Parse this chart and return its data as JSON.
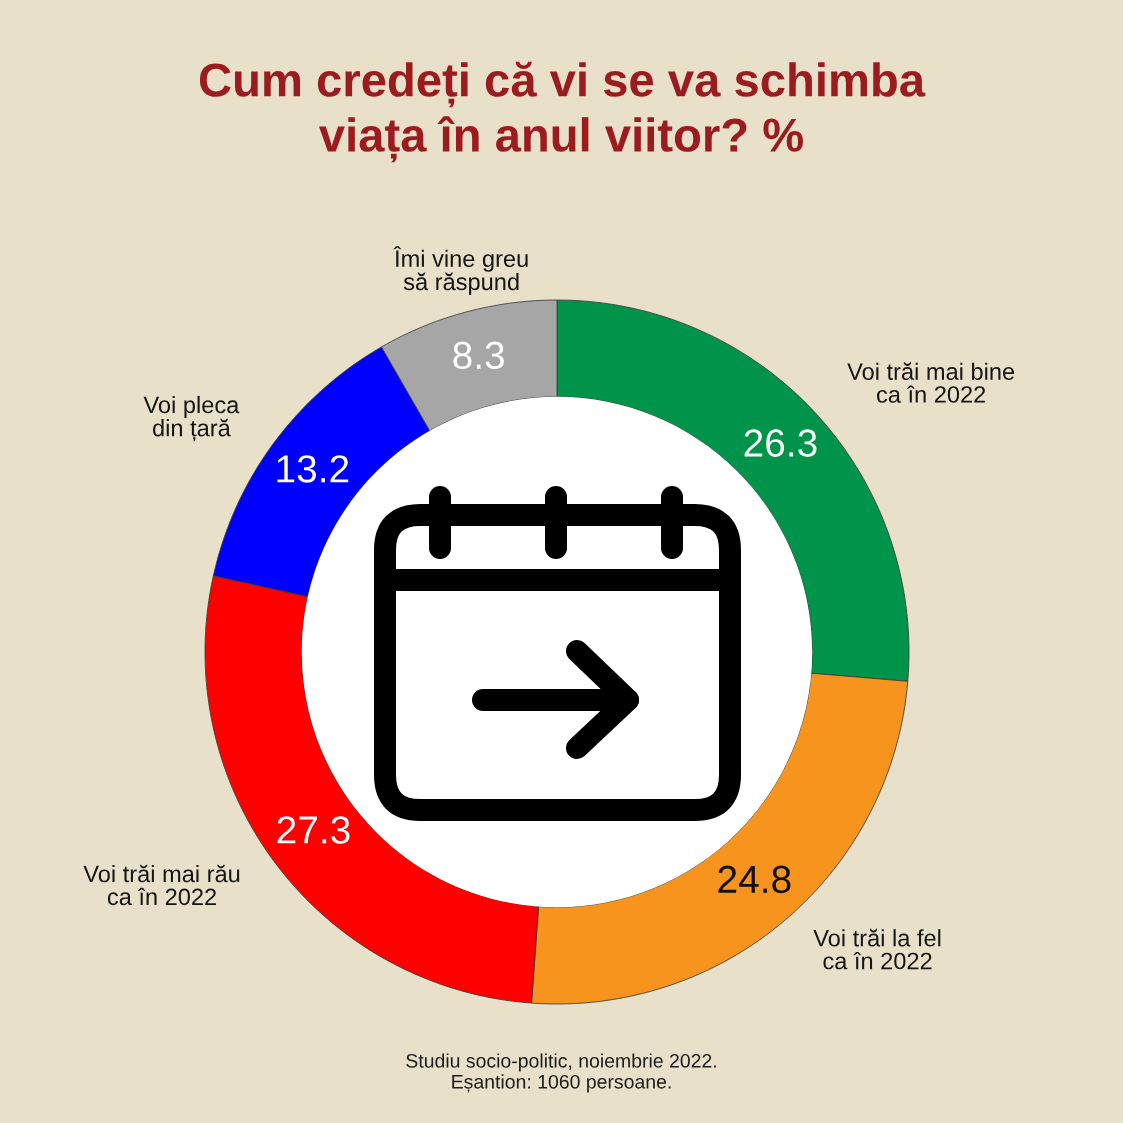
{
  "chart_data": {
    "type": "donut",
    "title": "Cum credeți că vi se va schimba\nviața în anul viitor? %",
    "categories": [
      "Voi trăi mai bine\nca în 2022",
      "Voi trăi la fel\nca în 2022",
      "Voi trăi mai rău\nca în 2022",
      "Voi pleca\ndin țară",
      "Îmi vine greu\nsă răspund"
    ],
    "values": [
      26.3,
      24.8,
      27.3,
      13.2,
      8.3
    ],
    "colors": [
      "#00934a",
      "#f7941d",
      "#ff0000",
      "#0000ff",
      "#a6a6a6"
    ],
    "data_labels": true,
    "annotations": [
      "Studiu socio-politic, noiembrie 2022.\nEșantion: 1060 persoane."
    ]
  }
}
